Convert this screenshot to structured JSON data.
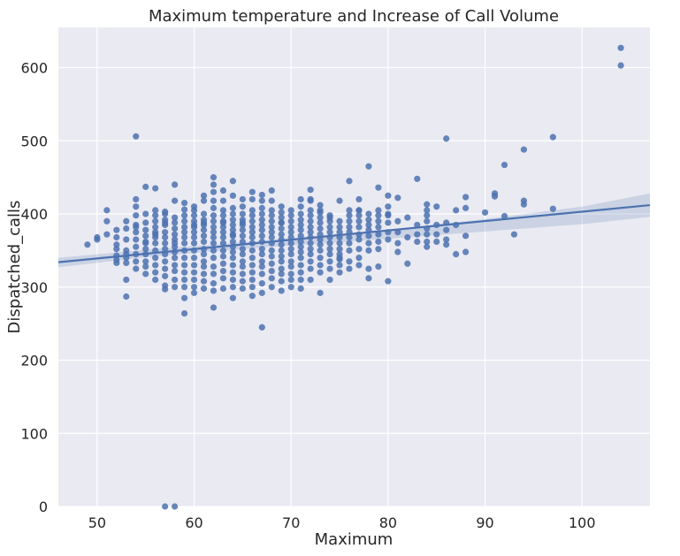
{
  "chart_data": {
    "type": "scatter",
    "title": "Maximum temperature and Increase of Call Volume",
    "xlabel": "Maximum",
    "ylabel": "Dispatched_calls",
    "xlim": [
      46,
      107
    ],
    "ylim": [
      0,
      655
    ],
    "xticks": [
      50,
      60,
      70,
      80,
      90,
      100
    ],
    "yticks": [
      0,
      100,
      200,
      300,
      400,
      500,
      600
    ],
    "grid": true,
    "background": "#eaeaf2",
    "point_color": "#4c72b0",
    "line_color": "#4c72b0",
    "band_color": "#4c72b0",
    "regression": {
      "x": [
        46,
        107
      ],
      "y": [
        334,
        412
      ]
    },
    "confidence_band": {
      "x": [
        46,
        55,
        62,
        70,
        80,
        90,
        100,
        107
      ],
      "lower": [
        327,
        341,
        349,
        357,
        366,
        376,
        386,
        396
      ],
      "upper": [
        340,
        351,
        358,
        367,
        378,
        393,
        410,
        428
      ]
    },
    "points": {
      "x": [
        49,
        50,
        50,
        51,
        51,
        51,
        52,
        52,
        52,
        52,
        52,
        52,
        52,
        53,
        53,
        53,
        53,
        53,
        53,
        53,
        53,
        53,
        54,
        54,
        54,
        54,
        54,
        54,
        54,
        54,
        54,
        54,
        54,
        54,
        55,
        55,
        55,
        55,
        55,
        55,
        55,
        55,
        55,
        55,
        55,
        55,
        56,
        56,
        56,
        56,
        56,
        56,
        56,
        56,
        56,
        56,
        56,
        56,
        56,
        56,
        57,
        57,
        57,
        57,
        57,
        57,
        57,
        57,
        57,
        57,
        57,
        57,
        57,
        57,
        57,
        58,
        58,
        58,
        58,
        58,
        58,
        58,
        58,
        58,
        58,
        58,
        58,
        58,
        58,
        58,
        59,
        59,
        59,
        59,
        59,
        59,
        59,
        59,
        59,
        59,
        59,
        59,
        59,
        59,
        59,
        59,
        60,
        60,
        60,
        60,
        60,
        60,
        60,
        60,
        60,
        60,
        60,
        60,
        60,
        60,
        60,
        60,
        61,
        61,
        61,
        61,
        61,
        61,
        61,
        61,
        61,
        61,
        61,
        61,
        61,
        61,
        61,
        61,
        62,
        62,
        62,
        62,
        62,
        62,
        62,
        62,
        62,
        62,
        62,
        62,
        62,
        62,
        62,
        62,
        62,
        62,
        63,
        63,
        63,
        63,
        63,
        63,
        63,
        63,
        63,
        63,
        63,
        63,
        63,
        63,
        63,
        63,
        64,
        64,
        64,
        64,
        64,
        64,
        64,
        64,
        64,
        64,
        64,
        64,
        64,
        64,
        64,
        64,
        64,
        64,
        65,
        65,
        65,
        65,
        65,
        65,
        65,
        65,
        65,
        65,
        65,
        65,
        65,
        65,
        65,
        65,
        66,
        66,
        66,
        66,
        66,
        66,
        66,
        66,
        66,
        66,
        66,
        66,
        66,
        66,
        66,
        66,
        67,
        67,
        67,
        67,
        67,
        67,
        67,
        67,
        67,
        67,
        67,
        67,
        67,
        67,
        67,
        67,
        67,
        68,
        68,
        68,
        68,
        68,
        68,
        68,
        68,
        68,
        68,
        68,
        68,
        68,
        68,
        68,
        69,
        69,
        69,
        69,
        69,
        69,
        69,
        69,
        69,
        69,
        69,
        69,
        69,
        69,
        69,
        69,
        70,
        70,
        70,
        70,
        70,
        70,
        70,
        70,
        70,
        70,
        70,
        70,
        70,
        70,
        71,
        71,
        71,
        71,
        71,
        71,
        71,
        71,
        71,
        71,
        71,
        71,
        71,
        71,
        71,
        72,
        72,
        72,
        72,
        72,
        72,
        72,
        72,
        72,
        72,
        72,
        72,
        72,
        72,
        72,
        73,
        73,
        73,
        73,
        73,
        73,
        73,
        73,
        73,
        73,
        73,
        73,
        73,
        73,
        74,
        74,
        74,
        74,
        74,
        74,
        74,
        74,
        74,
        74,
        74,
        74,
        75,
        75,
        75,
        75,
        75,
        75,
        75,
        75,
        75,
        75,
        75,
        75,
        76,
        76,
        76,
        76,
        76,
        76,
        76,
        76,
        76,
        76,
        76,
        77,
        77,
        77,
        77,
        77,
        77,
        77,
        77,
        77,
        77,
        77,
        78,
        78,
        78,
        78,
        78,
        78,
        78,
        78,
        78,
        78,
        79,
        79,
        79,
        79,
        79,
        79,
        79,
        79,
        79,
        80,
        80,
        80,
        80,
        80,
        80,
        80,
        80,
        81,
        81,
        81,
        81,
        81,
        82,
        82,
        82,
        83,
        83,
        83,
        83,
        84,
        84,
        84,
        84,
        84,
        84,
        84,
        84,
        85,
        85,
        85,
        85,
        86,
        86,
        86,
        86,
        86,
        87,
        87,
        87,
        88,
        88,
        88,
        88,
        90,
        91,
        91,
        92,
        92,
        93,
        94,
        94,
        94,
        97,
        97,
        104,
        104,
        57,
        58
      ],
      "y": [
        358,
        365,
        368,
        405,
        390,
        372,
        343,
        337,
        358,
        352,
        368,
        378,
        333,
        380,
        365,
        350,
        345,
        340,
        333,
        310,
        287,
        390,
        506,
        420,
        410,
        398,
        385,
        375,
        365,
        355,
        345,
        335,
        325,
        382,
        437,
        400,
        388,
        378,
        370,
        362,
        352,
        345,
        335,
        328,
        318,
        360,
        435,
        405,
        398,
        390,
        382,
        375,
        368,
        360,
        350,
        340,
        330,
        320,
        310,
        372,
        403,
        400,
        392,
        385,
        375,
        368,
        360,
        352,
        345,
        335,
        325,
        315,
        302,
        297,
        388,
        440,
        418,
        395,
        388,
        380,
        372,
        365,
        355,
        348,
        340,
        330,
        322,
        310,
        300,
        360,
        415,
        406,
        398,
        390,
        382,
        375,
        368,
        360,
        350,
        340,
        330,
        320,
        310,
        300,
        285,
        264,
        410,
        405,
        398,
        390,
        382,
        375,
        368,
        360,
        350,
        340,
        330,
        320,
        310,
        300,
        292,
        385,
        425,
        418,
        400,
        392,
        385,
        378,
        370,
        362,
        352,
        345,
        335,
        328,
        318,
        308,
        298,
        388,
        450,
        440,
        430,
        418,
        408,
        398,
        390,
        382,
        375,
        368,
        360,
        350,
        340,
        328,
        318,
        305,
        295,
        272,
        432,
        418,
        405,
        398,
        390,
        382,
        375,
        368,
        360,
        350,
        342,
        332,
        322,
        312,
        298,
        388,
        445,
        425,
        408,
        400,
        392,
        385,
        378,
        370,
        362,
        355,
        348,
        340,
        330,
        320,
        310,
        300,
        285,
        372,
        420,
        410,
        400,
        392,
        385,
        378,
        370,
        362,
        352,
        345,
        335,
        328,
        318,
        308,
        298,
        388,
        430,
        420,
        405,
        398,
        390,
        382,
        375,
        368,
        360,
        350,
        340,
        330,
        320,
        310,
        300,
        288,
        426,
        418,
        408,
        400,
        392,
        385,
        378,
        370,
        362,
        352,
        345,
        335,
        328,
        318,
        305,
        292,
        245,
        432,
        418,
        405,
        398,
        390,
        382,
        375,
        368,
        360,
        350,
        342,
        332,
        322,
        312,
        300,
        410,
        402,
        395,
        388,
        380,
        372,
        365,
        358,
        350,
        342,
        335,
        325,
        318,
        308,
        295,
        388,
        405,
        398,
        390,
        382,
        375,
        368,
        360,
        352,
        345,
        335,
        328,
        318,
        310,
        300,
        420,
        410,
        400,
        392,
        385,
        378,
        370,
        362,
        355,
        348,
        340,
        330,
        320,
        310,
        298,
        433,
        418,
        405,
        398,
        390,
        382,
        375,
        368,
        360,
        352,
        345,
        335,
        325,
        310,
        420,
        412,
        402,
        395,
        388,
        380,
        372,
        365,
        358,
        350,
        340,
        330,
        320,
        292,
        405,
        398,
        390,
        382,
        375,
        368,
        360,
        352,
        345,
        335,
        325,
        310,
        395,
        390,
        382,
        375,
        368,
        360,
        352,
        345,
        338,
        330,
        320,
        340,
        418,
        405,
        398,
        390,
        382,
        375,
        368,
        360,
        350,
        335,
        325,
        445,
        420,
        405,
        398,
        390,
        382,
        372,
        365,
        352,
        340,
        330,
        405,
        400,
        392,
        385,
        378,
        370,
        360,
        350,
        325,
        312,
        465,
        405,
        398,
        390,
        382,
        372,
        362,
        352,
        328,
        436,
        425,
        410,
        398,
        388,
        375,
        365,
        308,
        400,
        390,
        375,
        360,
        348,
        422,
        368,
        332,
        395,
        385,
        372,
        362,
        448,
        413,
        405,
        398,
        390,
        380,
        372,
        362,
        355,
        410,
        385,
        372,
        362,
        503,
        388,
        378,
        365,
        358,
        405,
        385,
        345,
        423,
        408,
        370,
        348,
        402,
        428,
        424,
        467,
        397,
        372,
        488,
        418,
        413,
        505,
        407,
        627,
        603,
        0,
        0
      ]
    }
  }
}
